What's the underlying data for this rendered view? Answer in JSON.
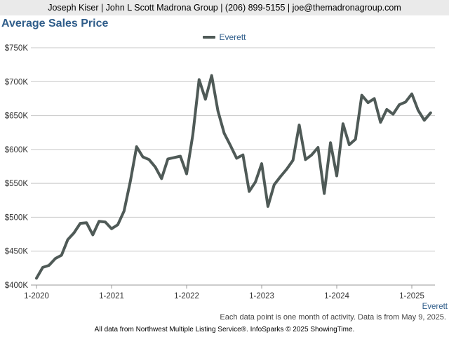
{
  "header": {
    "contact_line": "Joseph Kiser | John L Scott Madrona Group | (206) 899-5155 | joe@themadronagroup.com"
  },
  "footer": {
    "note": "Each data point is one month of activity. Data is from May 9, 2025.",
    "source": "All data from Northwest Multiple Listing Service®. InfoSparks © 2025 ShowingTime."
  },
  "chart_data": {
    "type": "line",
    "title": "Average Sales Price",
    "series_color": "#4f5a57",
    "legend_position": "top-center",
    "grid": true,
    "ylim": [
      400000,
      750000
    ],
    "y_ticks": [
      {
        "value": 400000,
        "label": "$400K"
      },
      {
        "value": 450000,
        "label": "$450K"
      },
      {
        "value": 500000,
        "label": "$500K"
      },
      {
        "value": 550000,
        "label": "$550K"
      },
      {
        "value": 600000,
        "label": "$600K"
      },
      {
        "value": 650000,
        "label": "$650K"
      },
      {
        "value": 700000,
        "label": "$700K"
      },
      {
        "value": 750000,
        "label": "$750K"
      }
    ],
    "x_ticks": [
      {
        "value": "2020-01",
        "label": "1-2020"
      },
      {
        "value": "2021-01",
        "label": "1-2021"
      },
      {
        "value": "2022-01",
        "label": "1-2022"
      },
      {
        "value": "2023-01",
        "label": "1-2023"
      },
      {
        "value": "2024-01",
        "label": "1-2024"
      },
      {
        "value": "2025-01",
        "label": "1-2025"
      }
    ],
    "end_label": "Everett",
    "series": [
      {
        "name": "Everett",
        "x": [
          "2020-01",
          "2020-02",
          "2020-03",
          "2020-04",
          "2020-05",
          "2020-06",
          "2020-07",
          "2020-08",
          "2020-09",
          "2020-10",
          "2020-11",
          "2020-12",
          "2021-01",
          "2021-02",
          "2021-03",
          "2021-04",
          "2021-05",
          "2021-06",
          "2021-07",
          "2021-08",
          "2021-09",
          "2021-10",
          "2021-11",
          "2021-12",
          "2022-01",
          "2022-02",
          "2022-03",
          "2022-04",
          "2022-05",
          "2022-06",
          "2022-07",
          "2022-08",
          "2022-09",
          "2022-10",
          "2022-11",
          "2022-12",
          "2023-01",
          "2023-02",
          "2023-03",
          "2023-04",
          "2023-05",
          "2023-06",
          "2023-07",
          "2023-08",
          "2023-09",
          "2023-10",
          "2023-11",
          "2023-12",
          "2024-01",
          "2024-02",
          "2024-03",
          "2024-04",
          "2024-05",
          "2024-06",
          "2024-07",
          "2024-08",
          "2024-09",
          "2024-10",
          "2024-11",
          "2024-12",
          "2025-01",
          "2025-02",
          "2025-03",
          "2025-04"
        ],
        "values": [
          410000,
          426000,
          429000,
          439000,
          444000,
          467000,
          477000,
          491000,
          492000,
          474000,
          494000,
          493000,
          483000,
          489000,
          509000,
          553000,
          604000,
          589000,
          585000,
          574000,
          557000,
          586000,
          588000,
          590000,
          564000,
          622000,
          703000,
          674000,
          709000,
          657000,
          624000,
          606000,
          587000,
          592000,
          538000,
          552000,
          579000,
          516000,
          548000,
          560000,
          571000,
          584000,
          636000,
          585000,
          592000,
          603000,
          535000,
          610000,
          561000,
          638000,
          607000,
          615000,
          680000,
          669000,
          675000,
          640000,
          659000,
          652000,
          666000,
          670000,
          682000,
          658000,
          643000,
          654000
        ]
      }
    ]
  }
}
